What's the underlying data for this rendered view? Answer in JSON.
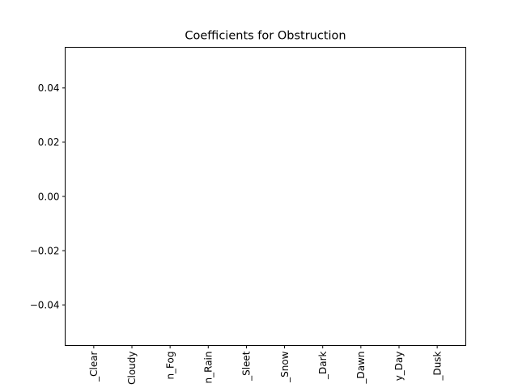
{
  "chart_data": {
    "type": "bar",
    "title": "Coefficients for Obstruction",
    "xlabel": "",
    "ylabel": "",
    "categories": [
      "_Clear",
      "Cloudy",
      "n_Fog",
      "n_Rain",
      "_Sleet",
      "_Snow",
      "_Dark",
      "_Dawn",
      "y_Day",
      "_Dusk"
    ],
    "values": [
      0,
      0,
      0,
      0,
      0,
      0,
      0,
      0,
      0,
      0
    ],
    "ylim": [
      -0.055,
      0.055
    ],
    "yticks": [
      0.04,
      0.02,
      0.0,
      -0.02,
      -0.04
    ],
    "ytick_labels": [
      "0.04",
      "0.02",
      "0.00",
      "−0.02",
      "−0.04"
    ],
    "grid": false,
    "colors": {
      "axes": "#000000",
      "background": "#ffffff",
      "bar": "#1f77b4"
    }
  }
}
